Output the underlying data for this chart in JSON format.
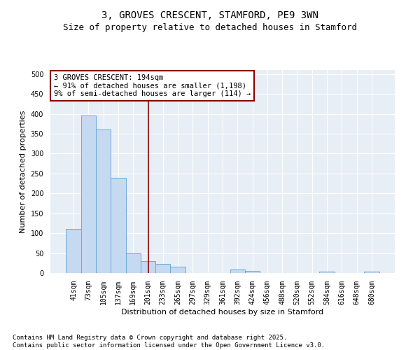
{
  "title": "3, GROVES CRESCENT, STAMFORD, PE9 3WN",
  "subtitle": "Size of property relative to detached houses in Stamford",
  "xlabel": "Distribution of detached houses by size in Stamford",
  "ylabel": "Number of detached properties",
  "categories": [
    "41sqm",
    "73sqm",
    "105sqm",
    "137sqm",
    "169sqm",
    "201sqm",
    "233sqm",
    "265sqm",
    "297sqm",
    "329sqm",
    "361sqm",
    "392sqm",
    "424sqm",
    "456sqm",
    "488sqm",
    "520sqm",
    "552sqm",
    "584sqm",
    "616sqm",
    "648sqm",
    "680sqm"
  ],
  "values": [
    110,
    395,
    360,
    240,
    50,
    30,
    22,
    15,
    0,
    0,
    0,
    8,
    5,
    0,
    0,
    0,
    0,
    4,
    0,
    0,
    4
  ],
  "bar_color": "#c5d9f0",
  "bar_edge_color": "#6aaad4",
  "vline_x": 5,
  "vline_color": "#8b0000",
  "annotation_text": "3 GROVES CRESCENT: 194sqm\n← 91% of detached houses are smaller (1,198)\n9% of semi-detached houses are larger (114) →",
  "annotation_box_color": "#8b0000",
  "background_color": "#e8eef5",
  "grid_color": "#ffffff",
  "ylim": [
    0,
    510
  ],
  "yticks": [
    0,
    50,
    100,
    150,
    200,
    250,
    300,
    350,
    400,
    450,
    500
  ],
  "footer": "Contains HM Land Registry data © Crown copyright and database right 2025.\nContains public sector information licensed under the Open Government Licence v3.0.",
  "title_fontsize": 10,
  "subtitle_fontsize": 9,
  "axis_label_fontsize": 8,
  "tick_fontsize": 7,
  "footer_fontsize": 6.5,
  "annotation_fontsize": 7.5
}
